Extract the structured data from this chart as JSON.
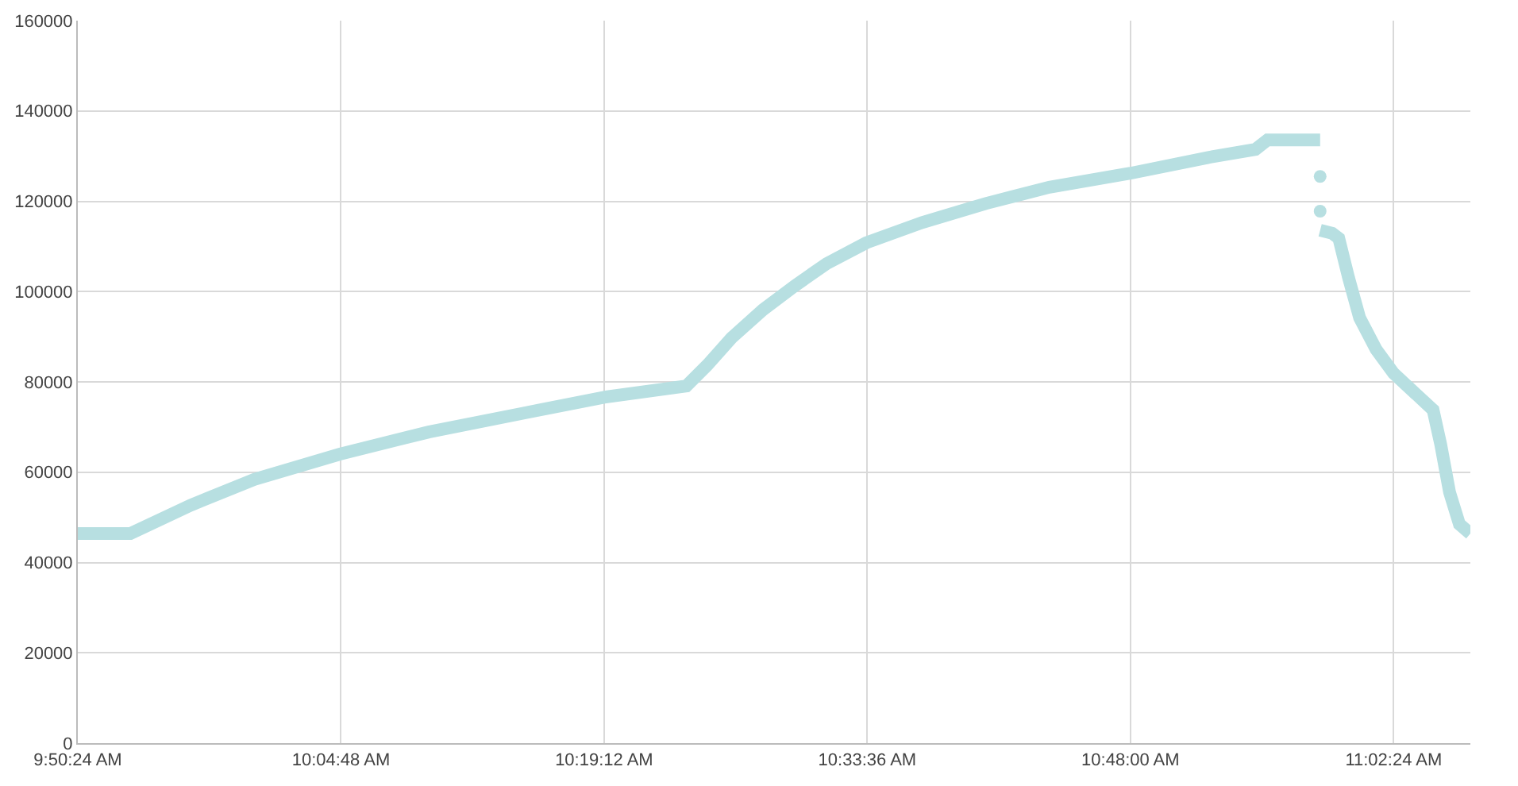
{
  "chart_data": {
    "type": "line",
    "grid": true,
    "marker": "none",
    "line_style": "solid",
    "xlim": [
      9.84,
      11.11
    ],
    "xticks": [
      {
        "value": 9.84,
        "label": "9:50:24 AM"
      },
      {
        "value": 10.08,
        "label": "10:04:48 AM"
      },
      {
        "value": 10.32,
        "label": "10:19:12 AM"
      },
      {
        "value": 10.56,
        "label": "10:33:36 AM"
      },
      {
        "value": 10.8,
        "label": "10:48:00 AM"
      },
      {
        "value": 11.04,
        "label": "11:02:24 AM"
      }
    ],
    "ylim": [
      0,
      160000
    ],
    "yticks": [
      0,
      20000,
      40000,
      60000,
      80000,
      100000,
      120000,
      140000,
      160000
    ],
    "series": [
      {
        "color": "#b7dfe1",
        "x": [
          9.84,
          9.888,
          9.943,
          10.001,
          10.079,
          10.16,
          10.247,
          10.32,
          10.395,
          10.414,
          10.436,
          10.465,
          10.494,
          10.523,
          10.559,
          10.61,
          10.668,
          10.726,
          10.8,
          10.871,
          10.914,
          10.925,
          10.936,
          10.973
        ],
        "values": [
          46400,
          46400,
          52700,
          58400,
          64000,
          68900,
          73100,
          76600,
          79100,
          83700,
          89700,
          96000,
          101300,
          106200,
          110800,
          115300,
          119500,
          123100,
          126200,
          129700,
          131500,
          133600,
          133600,
          133600
        ]
      },
      {
        "type": "scatter",
        "marker": "circle",
        "color": "#b7dfe1",
        "x": [
          10.973,
          10.973
        ],
        "values": [
          125500,
          117800
        ]
      },
      {
        "color": "#b7dfe1",
        "x": [
          10.973,
          10.984,
          10.99,
          10.999,
          11.009,
          11.024,
          11.04,
          11.06,
          11.076,
          11.083,
          11.091,
          11.1,
          11.11
        ],
        "values": [
          113600,
          112900,
          111800,
          103000,
          94200,
          87200,
          81900,
          77400,
          73800,
          66100,
          55600,
          48500,
          46400
        ]
      }
    ]
  }
}
